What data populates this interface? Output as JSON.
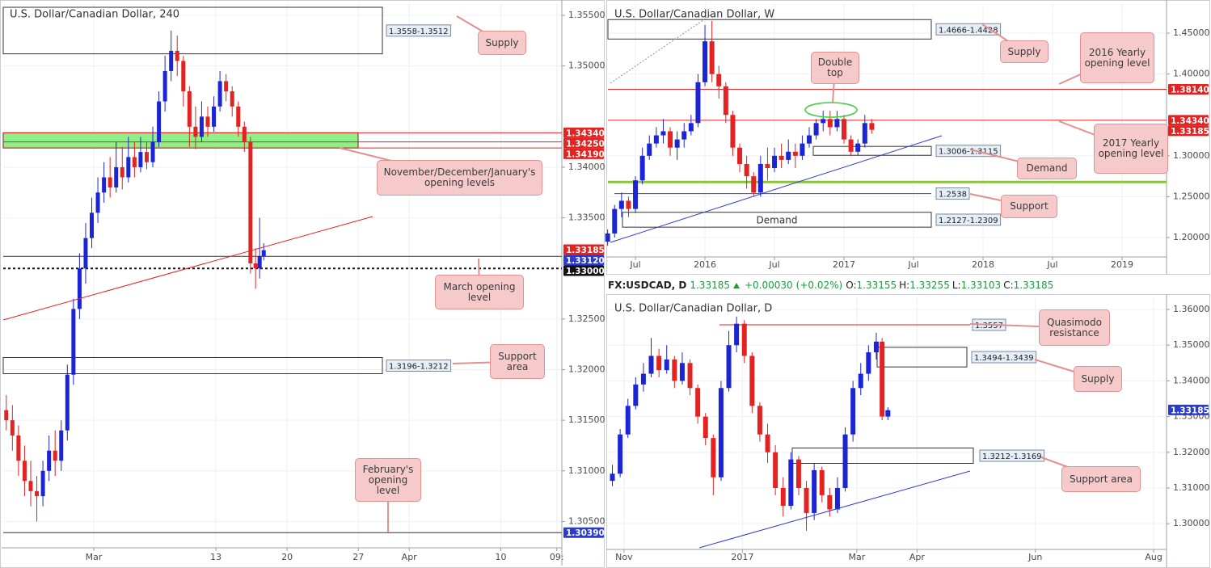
{
  "quote": {
    "symbol": "FX:USDCAD, D",
    "last": "1.33185",
    "change": "+0.00030",
    "change_pct": "(+0.02%)",
    "fields": [
      {
        "key": "O:",
        "value": "1.33155"
      },
      {
        "key": "H:",
        "value": "1.33255"
      },
      {
        "key": "L:",
        "value": "1.33103"
      },
      {
        "key": "C:",
        "value": "1.33185"
      }
    ]
  },
  "chart_data": [
    {
      "type": "candlestick",
      "title": "U.S. Dollar/Canadian Dollar, 240",
      "up_color": "#1c25d6",
      "down_color": "#e32222",
      "xlim": [
        -8.9,
        46
      ],
      "ylim": [
        1.3024,
        1.3562
      ],
      "xticks": [
        {
          "value": 0,
          "label": "Mar"
        },
        {
          "value": 12,
          "label": "13"
        },
        {
          "value": 19,
          "label": "20"
        },
        {
          "value": 26,
          "label": "27"
        },
        {
          "value": 31,
          "label": "Apr"
        },
        {
          "value": 40,
          "label": "10"
        },
        {
          "value": 45.5,
          "label": "09:"
        }
      ],
      "yticks": [
        {
          "value": 1.355,
          "label": "1.35500"
        },
        {
          "value": 1.35,
          "label": "1.35000"
        },
        {
          "value": 1.34,
          "label": "1.34000"
        },
        {
          "value": 1.335,
          "label": "1.33500"
        },
        {
          "value": 1.325,
          "label": "1.32500"
        },
        {
          "value": 1.32,
          "label": "1.32000"
        },
        {
          "value": 1.315,
          "label": "1.31500"
        },
        {
          "value": 1.31,
          "label": "1.31000"
        },
        {
          "value": 1.305,
          "label": "1.30500"
        }
      ],
      "x": [
        -8.6,
        -8.0,
        -7.4,
        -6.8,
        -6.2,
        -5.6,
        -5.0,
        -4.4,
        -3.8,
        -3.2,
        -2.6,
        -2.0,
        -1.4,
        -0.8,
        -0.2,
        0.4,
        1.0,
        1.6,
        2.2,
        2.8,
        3.4,
        4.0,
        4.6,
        5.2,
        5.8,
        6.4,
        7.0,
        7.6,
        8.2,
        8.8,
        9.4,
        10.0,
        10.6,
        11.2,
        11.8,
        12.4,
        13.0,
        13.6,
        14.2,
        14.8,
        15.4,
        15.9,
        16.3,
        16.7
      ],
      "open": [
        1.316,
        1.315,
        1.3135,
        1.311,
        1.309,
        1.308,
        1.3075,
        1.31,
        1.312,
        1.311,
        1.314,
        1.3195,
        1.326,
        1.33,
        1.333,
        1.3355,
        1.3375,
        1.339,
        1.338,
        1.34,
        1.339,
        1.341,
        1.34,
        1.3415,
        1.3405,
        1.3425,
        1.3465,
        1.3495,
        1.3515,
        1.3505,
        1.3475,
        1.344,
        1.343,
        1.345,
        1.344,
        1.346,
        1.3485,
        1.3475,
        1.346,
        1.344,
        1.3425,
        1.3305,
        1.33,
        1.3312
      ],
      "high": [
        1.3175,
        1.3165,
        1.3145,
        1.3125,
        1.311,
        1.3095,
        1.311,
        1.3135,
        1.314,
        1.315,
        1.3205,
        1.327,
        1.3315,
        1.3345,
        1.337,
        1.339,
        1.3405,
        1.341,
        1.3425,
        1.342,
        1.343,
        1.3425,
        1.343,
        1.3425,
        1.344,
        1.3475,
        1.351,
        1.3535,
        1.353,
        1.351,
        1.348,
        1.346,
        1.3465,
        1.346,
        1.347,
        1.3495,
        1.3492,
        1.348,
        1.3465,
        1.3445,
        1.343,
        1.332,
        1.335,
        1.3325
      ],
      "low": [
        1.314,
        1.312,
        1.3095,
        1.3075,
        1.3065,
        1.305,
        1.3065,
        1.309,
        1.3095,
        1.31,
        1.313,
        1.3185,
        1.325,
        1.3285,
        1.332,
        1.3345,
        1.3365,
        1.337,
        1.3375,
        1.3378,
        1.3385,
        1.339,
        1.3395,
        1.3398,
        1.34,
        1.342,
        1.3455,
        1.3485,
        1.349,
        1.346,
        1.342,
        1.3418,
        1.3425,
        1.343,
        1.3435,
        1.3455,
        1.3465,
        1.345,
        1.343,
        1.3415,
        1.3295,
        1.328,
        1.329,
        1.3308
      ],
      "close": [
        1.315,
        1.3135,
        1.311,
        1.309,
        1.308,
        1.3075,
        1.31,
        1.312,
        1.311,
        1.314,
        1.3195,
        1.326,
        1.33,
        1.333,
        1.3355,
        1.3375,
        1.339,
        1.338,
        1.34,
        1.339,
        1.341,
        1.34,
        1.3415,
        1.3405,
        1.3425,
        1.3465,
        1.3495,
        1.3515,
        1.3505,
        1.3475,
        1.344,
        1.343,
        1.345,
        1.344,
        1.346,
        1.3485,
        1.3475,
        1.346,
        1.344,
        1.3425,
        1.3305,
        1.33,
        1.3312,
        1.3318
      ],
      "zones": [
        {
          "label": "1.3558-1.3512",
          "low": 1.3512,
          "high": 1.3558
        },
        {
          "low": 1.3419,
          "high": 1.3434,
          "color": "#8ff08a"
        },
        {
          "label": "1.3196-1.3212",
          "low": 1.3196,
          "high": 1.3212
        }
      ],
      "levels": [
        {
          "value": 1.3434,
          "label": "1.34340",
          "color": "#e32222",
          "line": "solid"
        },
        {
          "value": 1.3425,
          "label": "1.34250",
          "color": "#e32222",
          "line": "solid"
        },
        {
          "value": 1.3419,
          "label": "1.34190",
          "color": "#e32222",
          "line": "solid"
        },
        {
          "value": 1.33185,
          "label": "1.33185",
          "color": "#e32222"
        },
        {
          "value": 1.3312,
          "label": "1.33120",
          "color": "#2a3bd0",
          "line": "solid",
          "line_color": "#333"
        },
        {
          "value": 1.33,
          "label": "1.33000",
          "color": "#111111",
          "line": "dotted",
          "line_color": "#111"
        },
        {
          "value": 1.3039,
          "label": "1.30390",
          "color": "#2a3bd0",
          "line": "solid",
          "line_color": "#333"
        }
      ],
      "callouts": [
        "Supply",
        "November/December/January's opening levels",
        "March opening level",
        "Support area",
        "February's opening level"
      ]
    },
    {
      "type": "candlestick",
      "title": "U.S. Dollar/Canadian Dollar, W",
      "up_color": "#1c25d6",
      "down_color": "#e32222",
      "xlim": [
        2015.302,
        2019.32
      ],
      "ylim": [
        1.1763,
        1.4866
      ],
      "xticks": [
        {
          "value": 2015.5,
          "label": "Jul"
        },
        {
          "value": 2016,
          "label": "2016"
        },
        {
          "value": 2016.5,
          "label": "Jul"
        },
        {
          "value": 2017,
          "label": "2017"
        },
        {
          "value": 2017.5,
          "label": "Jul"
        },
        {
          "value": 2018,
          "label": "2018"
        },
        {
          "value": 2018.5,
          "label": "Jul"
        },
        {
          "value": 2019,
          "label": "2019"
        }
      ],
      "yticks": [
        {
          "value": 1.45,
          "label": "1.45000"
        },
        {
          "value": 1.4,
          "label": "1.40000"
        },
        {
          "value": 1.3,
          "label": "1.30000"
        },
        {
          "value": 1.25,
          "label": "1.25000"
        },
        {
          "value": 1.2,
          "label": "1.20000"
        }
      ],
      "x": [
        2015.3,
        2015.35,
        2015.4,
        2015.45,
        2015.5,
        2015.55,
        2015.6,
        2015.65,
        2015.7,
        2015.75,
        2015.8,
        2015.85,
        2015.9,
        2015.95,
        2016.0,
        2016.05,
        2016.1,
        2016.15,
        2016.2,
        2016.25,
        2016.3,
        2016.35,
        2016.4,
        2016.45,
        2016.5,
        2016.55,
        2016.6,
        2016.65,
        2016.7,
        2016.75,
        2016.8,
        2016.85,
        2016.9,
        2016.95,
        2017.0,
        2017.05,
        2017.1,
        2017.15,
        2017.2
      ],
      "open": [
        1.195,
        1.205,
        1.235,
        1.245,
        1.235,
        1.27,
        1.3,
        1.315,
        1.325,
        1.33,
        1.31,
        1.32,
        1.33,
        1.34,
        1.39,
        1.44,
        1.4,
        1.385,
        1.35,
        1.31,
        1.29,
        1.275,
        1.255,
        1.29,
        1.285,
        1.3,
        1.295,
        1.305,
        1.3,
        1.315,
        1.325,
        1.34,
        1.345,
        1.335,
        1.345,
        1.32,
        1.305,
        1.315,
        1.34
      ],
      "high": [
        1.21,
        1.24,
        1.255,
        1.25,
        1.275,
        1.31,
        1.325,
        1.335,
        1.345,
        1.335,
        1.33,
        1.34,
        1.35,
        1.4,
        1.46,
        1.465,
        1.41,
        1.39,
        1.355,
        1.315,
        1.3,
        1.28,
        1.3,
        1.31,
        1.31,
        1.315,
        1.32,
        1.315,
        1.325,
        1.335,
        1.345,
        1.355,
        1.355,
        1.355,
        1.35,
        1.325,
        1.32,
        1.35,
        1.345
      ],
      "low": [
        1.19,
        1.2,
        1.225,
        1.225,
        1.23,
        1.265,
        1.295,
        1.31,
        1.315,
        1.3,
        1.295,
        1.31,
        1.325,
        1.335,
        1.385,
        1.39,
        1.37,
        1.34,
        1.3,
        1.28,
        1.26,
        1.25,
        1.25,
        1.27,
        1.28,
        1.285,
        1.29,
        1.285,
        1.295,
        1.31,
        1.32,
        1.33,
        1.325,
        1.33,
        1.315,
        1.3,
        1.3,
        1.31,
        1.327
      ],
      "close": [
        1.205,
        1.235,
        1.245,
        1.235,
        1.27,
        1.3,
        1.315,
        1.325,
        1.33,
        1.31,
        1.32,
        1.33,
        1.34,
        1.39,
        1.44,
        1.4,
        1.385,
        1.35,
        1.31,
        1.29,
        1.275,
        1.255,
        1.29,
        1.285,
        1.3,
        1.295,
        1.305,
        1.3,
        1.315,
        1.325,
        1.34,
        1.345,
        1.335,
        1.345,
        1.32,
        1.305,
        1.315,
        1.34,
        1.3318
      ],
      "zones": [
        {
          "label": "1.4666-1.4428",
          "low": 1.4428,
          "high": 1.4666
        },
        {
          "label": "1.3006-1.3115",
          "low": 1.3006,
          "high": 1.3115
        },
        {
          "label": "1.2127-1.2309",
          "low": 1.2127,
          "high": 1.2309,
          "inner": "Demand"
        }
      ],
      "marked_lines": [
        {
          "value": 1.268,
          "color": "#8cc43c"
        },
        {
          "value": 1.2538,
          "label": "1.2538",
          "color": "#3a46c8"
        }
      ],
      "levels": [
        {
          "value": 1.3814,
          "label": "1.38140",
          "color": "#e32222",
          "line": "solid"
        },
        {
          "value": 1.3434,
          "label": "1.34340",
          "color": "#e32222",
          "line": "solid"
        },
        {
          "value": 1.33185,
          "label": "1.33185",
          "color": "#e32222"
        }
      ],
      "callouts": [
        "Supply",
        "2016 Yearly opening level",
        "Double top",
        "2017 Yearly opening level",
        "Demand",
        "Support"
      ]
    },
    {
      "type": "candlestick",
      "title": "U.S. Dollar/Canadian Dollar, D",
      "up_color": "#1c25d6",
      "down_color": "#e32222",
      "xlim": [
        -8.3,
        279.6
      ],
      "ylim": [
        1.2928,
        1.3634
      ],
      "xticks": [
        {
          "value": 0,
          "label": "Nov"
        },
        {
          "value": 61,
          "label": "2017"
        },
        {
          "value": 120,
          "label": "Mar"
        },
        {
          "value": 151,
          "label": "Apr"
        },
        {
          "value": 212,
          "label": "Jun"
        },
        {
          "value": 273,
          "label": "Aug"
        }
      ],
      "yticks": [
        {
          "value": 1.36,
          "label": "1.36000"
        },
        {
          "value": 1.35,
          "label": "1.35000"
        },
        {
          "value": 1.34,
          "label": "1.34000"
        },
        {
          "value": 1.33,
          "label": "1.33000"
        },
        {
          "value": 1.32,
          "label": "1.32000"
        },
        {
          "value": 1.31,
          "label": "1.31000"
        },
        {
          "value": 1.3,
          "label": "1.30000"
        }
      ],
      "x": [
        -6,
        -2,
        2,
        6,
        10,
        14,
        18,
        22,
        26,
        30,
        34,
        38,
        42,
        46,
        50,
        54,
        58,
        62,
        66,
        70,
        74,
        78,
        82,
        86,
        90,
        94,
        98,
        102,
        106,
        110,
        114,
        118,
        122,
        126,
        130,
        133,
        136
      ],
      "open": [
        1.312,
        1.314,
        1.325,
        1.333,
        1.339,
        1.342,
        1.347,
        1.343,
        1.346,
        1.34,
        1.345,
        1.338,
        1.33,
        1.324,
        1.313,
        1.338,
        1.35,
        1.356,
        1.347,
        1.333,
        1.325,
        1.32,
        1.31,
        1.305,
        1.318,
        1.31,
        1.303,
        1.315,
        1.308,
        1.304,
        1.31,
        1.325,
        1.338,
        1.342,
        1.348,
        1.351,
        1.33
      ],
      "high": [
        1.3165,
        1.3265,
        1.335,
        1.341,
        1.345,
        1.352,
        1.349,
        1.35,
        1.347,
        1.348,
        1.346,
        1.339,
        1.331,
        1.325,
        1.34,
        1.354,
        1.358,
        1.357,
        1.348,
        1.334,
        1.328,
        1.322,
        1.313,
        1.32,
        1.319,
        1.312,
        1.317,
        1.316,
        1.31,
        1.313,
        1.327,
        1.34,
        1.345,
        1.35,
        1.3535,
        1.352,
        1.3326
      ],
      "low": [
        1.3105,
        1.313,
        1.324,
        1.332,
        1.337,
        1.341,
        1.341,
        1.342,
        1.338,
        1.339,
        1.336,
        1.328,
        1.322,
        1.308,
        1.312,
        1.337,
        1.348,
        1.345,
        1.331,
        1.323,
        1.317,
        1.308,
        1.302,
        1.304,
        1.308,
        1.298,
        1.301,
        1.306,
        1.302,
        1.303,
        1.309,
        1.323,
        1.336,
        1.34,
        1.346,
        1.329,
        1.329
      ],
      "close": [
        1.314,
        1.325,
        1.333,
        1.339,
        1.342,
        1.347,
        1.343,
        1.346,
        1.34,
        1.345,
        1.338,
        1.33,
        1.324,
        1.313,
        1.338,
        1.35,
        1.356,
        1.347,
        1.333,
        1.325,
        1.32,
        1.31,
        1.305,
        1.318,
        1.31,
        1.303,
        1.315,
        1.308,
        1.304,
        1.31,
        1.325,
        1.338,
        1.342,
        1.348,
        1.351,
        1.33,
        1.3318
      ],
      "zones": [
        {
          "label": "1.3494-1.3439",
          "low": 1.3439,
          "high": 1.3494
        },
        {
          "label": "1.3212-1.3169",
          "low": 1.3169,
          "high": 1.3212
        }
      ],
      "marked_lines": [
        {
          "value": 1.3557,
          "label": "1.3557",
          "color": "#e32222"
        }
      ],
      "levels": [
        {
          "value": 1.33185,
          "label": "1.33185",
          "color": "#2a3bd0"
        }
      ],
      "callouts": [
        "Quasimodo resistance",
        "Supply",
        "Support area"
      ]
    }
  ]
}
